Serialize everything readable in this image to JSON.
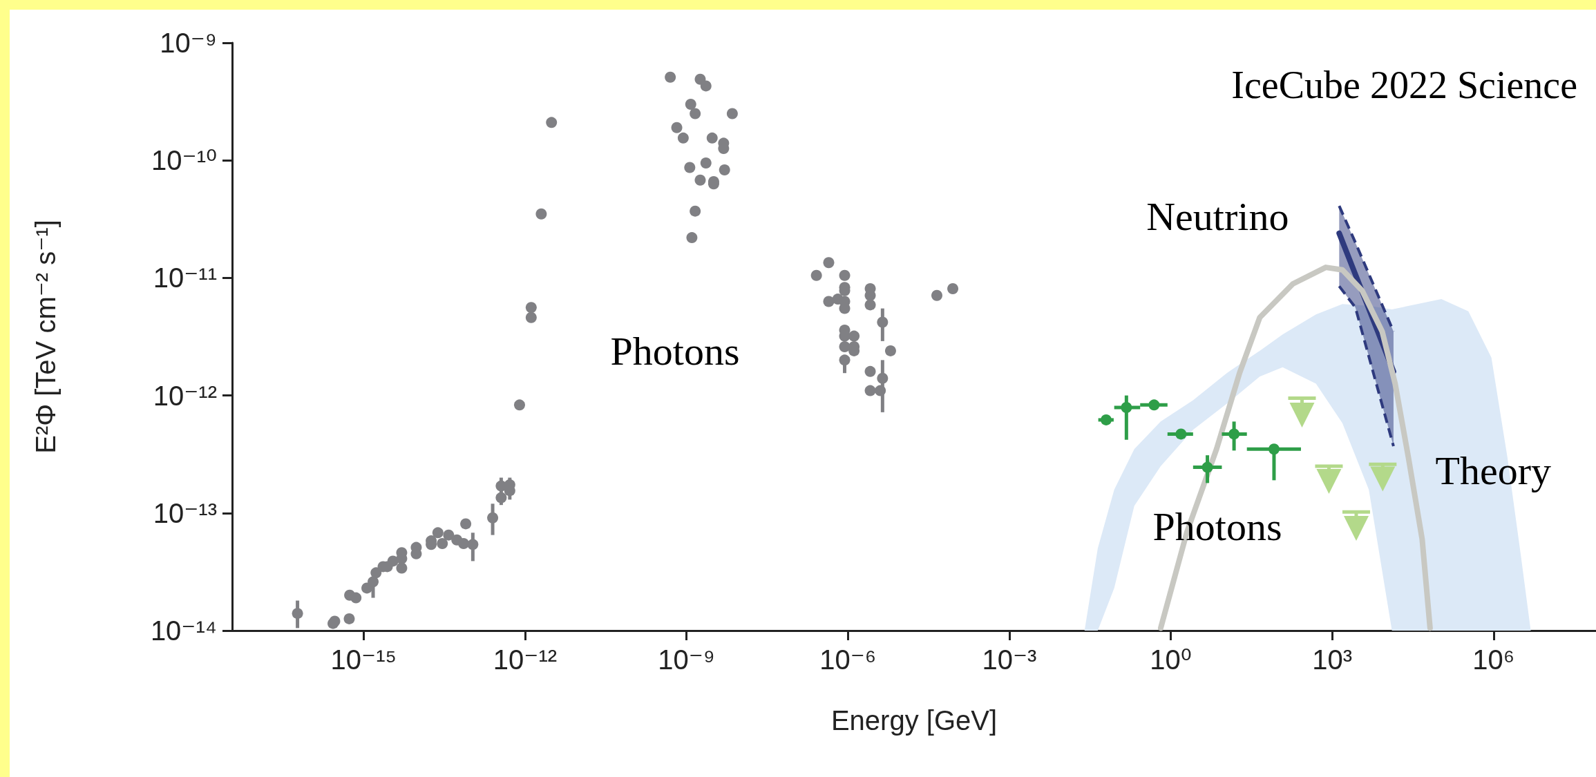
{
  "chart_data": {
    "type": "scatter",
    "title": "IceCube 2022 Science",
    "xlabel": "Energy [GeV]",
    "ylabel": "E²Φ [TeV cm⁻² s⁻¹]",
    "log": "xy",
    "xlim": [
      3.6e-18,
      80000000.0
    ],
    "ylim": [
      1e-14,
      1e-09
    ],
    "xticks": [
      {
        "value": 1e-15,
        "label": "10⁻¹⁵"
      },
      {
        "value": 1e-12,
        "label": "10⁻¹²"
      },
      {
        "value": 1e-09,
        "label": "10⁻⁹"
      },
      {
        "value": 1e-06,
        "label": "10⁻⁶"
      },
      {
        "value": 0.001,
        "label": "10⁻³"
      },
      {
        "value": 1,
        "label": "10⁰"
      },
      {
        "value": 1000.0,
        "label": "10³"
      },
      {
        "value": 1000000.0,
        "label": "10⁶"
      }
    ],
    "yticks": [
      {
        "value": 1e-14,
        "label": "10⁻¹⁴"
      },
      {
        "value": 1e-13,
        "label": "10⁻¹³"
      },
      {
        "value": 1e-12,
        "label": "10⁻¹²"
      },
      {
        "value": 1e-11,
        "label": "10⁻¹¹"
      },
      {
        "value": 1e-10,
        "label": "10⁻¹⁰"
      },
      {
        "value": 1e-09,
        "label": "10⁻⁹"
      }
    ],
    "series": [
      {
        "type": "area",
        "color": "#dce9f7",
        "x": [
          0.025,
          0.044,
          0.089,
          0.21,
          0.65,
          2.6,
          11,
          45,
          120,
          500,
          1550,
          4800,
          12900,
          107000,
          340000,
          910000,
          1800000.0,
          3200000.0,
          4900000.0
        ],
        "values": [
          null,
          null,
          null,
          null,
          null,
          null,
          null,
          null,
          null,
          null,
          null,
          null,
          null,
          null,
          null,
          null,
          null,
          null,
          null
        ],
        "upper": [
          1e-14,
          5e-14,
          1.58e-13,
          3.5e-13,
          6e-13,
          9.1e-13,
          1.55e-12,
          2.4e-12,
          3.3e-12,
          4.9e-12,
          6e-12,
          5.8e-12,
          5.4e-12,
          6.6e-12,
          5.2e-12,
          2.1e-12,
          3e-13,
          4.4e-14,
          1e-14
        ],
        "lower": [
          1e-14,
          1e-14,
          2.3e-14,
          1.15e-13,
          2.5e-13,
          5.1e-13,
          8.5e-13,
          1.45e-12,
          1.74e-12,
          1.26e-12,
          5.8e-13,
          1.58e-13,
          1e-14,
          1e-14,
          1e-14,
          1e-14,
          1e-14,
          1e-14,
          1e-14
        ]
      },
      {
        "type": "line",
        "color": "#2e3a7e",
        "marker": "none",
        "line_style": "solid",
        "x": [
          1350,
          2700,
          13800
        ],
        "values": [
          2.4e-11,
          1.07e-11,
          1.6e-12
        ],
        "upper": [
          4.1e-11,
          2e-11,
          3.5e-12
        ],
        "lower": [
          8.5e-12,
          5.6e-12,
          3.7e-13
        ]
      },
      {
        "type": "line",
        "color": "#c8c8c2",
        "marker": "none",
        "line_style": "solid",
        "x": [
          0.65,
          2.0,
          7.1,
          19,
          45,
          186,
          760,
          1550,
          3600,
          8500,
          14800,
          26000,
          47000,
          66000
        ],
        "values": [
          1.05e-14,
          6.9e-14,
          3.5e-13,
          1.55e-12,
          4.6e-12,
          8.9e-12,
          1.23e-11,
          1.17e-11,
          7.8e-12,
          3.5e-12,
          1.26e-12,
          3e-13,
          6e-14,
          1.05e-14
        ]
      },
      {
        "color": "#808084",
        "marker": "circle",
        "x": [
          5.9e-17,
          2.7e-16,
          2.9e-16,
          5.4e-16,
          5.5e-16,
          7.2e-16,
          1.15e-15,
          1.5e-15,
          1.7e-15,
          2.3e-15,
          2.75e-15,
          3.5e-15,
          5.1e-15,
          5.1e-15,
          5.1e-15,
          9.5e-15,
          9.5e-15,
          1.8e-14,
          1.8e-14,
          2.4e-14,
          2.9e-14,
          3.8e-14,
          5.4e-14,
          7.2e-14,
          7.9e-14,
          1.07e-13,
          2.5e-13,
          3.6e-13,
          3.6e-13,
          5.2e-13,
          5.2e-13,
          7.9e-13,
          1.3e-12,
          1.3e-12,
          2e-12,
          3.1e-12,
          5e-10,
          1.8e-09,
          2.3e-09,
          1.2e-09,
          1.45e-09,
          7.1e-09,
          6.6e-10,
          8.7e-10,
          3e-09,
          4.9e-09,
          4.9e-09,
          1.15e-09,
          2.3e-09,
          5.1e-09,
          1.8e-09,
          3.2e-09,
          3.2e-09,
          1.45e-09,
          1.26e-09,
          4.4e-07,
          2.6e-07,
          8.7e-07,
          8.7e-07,
          8.7e-07,
          4.4e-07,
          6.5e-07,
          8.7e-07,
          8.7e-07,
          2.6e-06,
          2.6e-06,
          2.6e-06,
          4.4e-06,
          8.7e-07,
          8.7e-07,
          1.3e-06,
          8.7e-07,
          1.3e-06,
          1.3e-06,
          8.7e-07,
          6.2e-06,
          2.6e-06,
          4.4e-06,
          2.6e-06,
          4e-06,
          4.5e-05,
          8.9e-05
        ],
        "values": [
          1.4e-14,
          1.15e-14,
          1.2e-14,
          1.26e-14,
          2e-14,
          1.9e-14,
          2.3e-14,
          2.6e-14,
          3.1e-14,
          3.5e-14,
          3.5e-14,
          3.9e-14,
          4.6e-14,
          4.1e-14,
          3.4e-14,
          5.1e-14,
          4.5e-14,
          5.8e-14,
          5.4e-14,
          6.8e-14,
          5.5e-14,
          6.5e-14,
          5.9e-14,
          5.5e-14,
          8.1e-14,
          5.4e-14,
          9.1e-14,
          1.7e-13,
          1.35e-13,
          1.74e-13,
          1.55e-13,
          8.3e-13,
          5.6e-12,
          4.6e-12,
          3.5e-11,
          2.1e-10,
          5.1e-10,
          4.9e-10,
          4.3e-10,
          3e-10,
          2.5e-10,
          2.5e-10,
          1.9e-10,
          1.55e-10,
          1.55e-10,
          1.4e-10,
          1.26e-10,
          8.7e-11,
          9.5e-11,
          8.3e-11,
          6.8e-11,
          6.6e-11,
          6.3e-11,
          3.7e-11,
          2.2e-11,
          1.35e-11,
          1.05e-11,
          1.05e-11,
          8.3e-12,
          7.8e-12,
          6.3e-12,
          6.6e-12,
          6.3e-12,
          5.5e-12,
          8.1e-12,
          7.1e-12,
          5.9e-12,
          4.2e-12,
          3.6e-12,
          3.2e-12,
          3.2e-12,
          2.6e-12,
          2.6e-12,
          2.4e-12,
          2e-12,
          2.4e-12,
          1.6e-12,
          1.4e-12,
          1.1e-12,
          1.1e-12,
          7.1e-12,
          8.1e-12
        ],
        "errors": [
          [
            1.05e-14,
            1.8e-14
          ],
          null,
          null,
          null,
          null,
          null,
          null,
          [
            1.9e-14,
            2.8e-14
          ],
          null,
          null,
          null,
          null,
          null,
          null,
          null,
          null,
          null,
          null,
          null,
          null,
          null,
          null,
          null,
          null,
          null,
          [
            3.9e-14,
            6.8e-14
          ],
          [
            6.5e-14,
            1.2e-13
          ],
          [
            1.17e-13,
            2e-13
          ],
          null,
          [
            1.3e-13,
            2e-13
          ],
          null,
          null,
          null,
          null,
          null,
          null,
          null,
          null,
          null,
          null,
          null,
          null,
          null,
          null,
          null,
          null,
          null,
          null,
          null,
          null,
          null,
          null,
          null,
          null,
          null,
          null,
          null,
          null,
          null,
          null,
          null,
          null,
          null,
          null,
          null,
          null,
          null,
          [
            2.9e-12,
            5.5e-12
          ],
          null,
          null,
          null,
          null,
          null,
          null,
          [
            1.55e-12,
            2e-12
          ],
          null,
          null,
          [
            7.2e-13,
            2e-12
          ],
          null,
          null,
          null,
          null
        ]
      },
      {
        "color": "#2e9e48",
        "marker": "circle",
        "x": [
          0.063,
          0.15,
          0.49,
          1.55,
          4.8,
          15,
          83
        ],
        "values": [
          6.2e-13,
          7.9e-13,
          8.3e-13,
          4.7e-13,
          2.45e-13,
          4.7e-13,
          3.5e-13
        ],
        "errors": [
          null,
          [
            4.2e-13,
            1e-12
          ],
          null,
          null,
          [
            1.8e-13,
            3.1e-13
          ],
          [
            3.4e-13,
            6e-13
          ],
          [
            1.9e-13,
            3.5e-13
          ]
        ],
        "xerrors": [
          [
            0.045,
            0.087
          ],
          [
            0.089,
            0.27
          ],
          [
            0.27,
            0.87
          ],
          [
            0.87,
            2.6
          ],
          [
            2.6,
            8.9
          ],
          [
            8.9,
            26
          ],
          [
            26,
            263
          ]
        ]
      },
      {
        "color": "#b3d98a",
        "marker": "triangle",
        "x": [
          275,
          870,
          2800,
          8700
        ],
        "values": [
          6.8e-13,
          1.86e-13,
          7.4e-14,
          1.95e-13
        ],
        "errors": [
          [
            6.8e-13,
            9.5e-13
          ],
          [
            1.86e-13,
            2.5e-13
          ],
          [
            7.4e-14,
            1.02e-13
          ],
          [
            1.95e-13,
            2.6e-13
          ]
        ]
      }
    ],
    "annotations": [
      "Photons",
      {
        "text": "Neutrino",
        "x": 1350,
        "y": 2.4e-11
      },
      "Photons",
      {
        "text": "Theory",
        "x": 26000,
        "y": 3e-13
      }
    ]
  }
}
